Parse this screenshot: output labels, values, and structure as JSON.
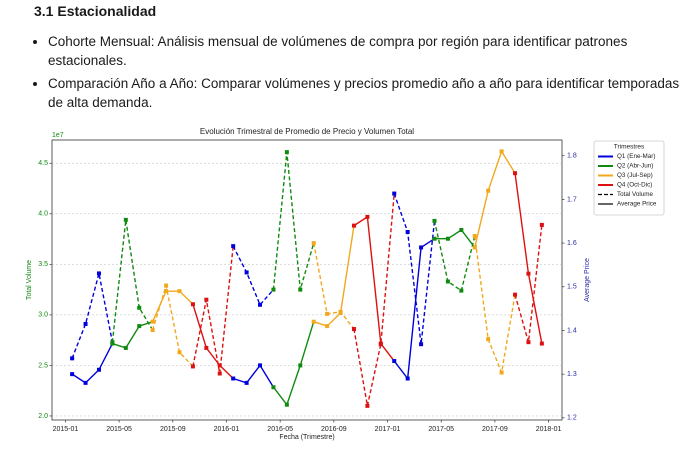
{
  "header": {
    "title": "3.1 Estacionalidad"
  },
  "bullets": [
    "Cohorte Mensual: Análisis mensual de volúmenes de compra por región para identificar patrones estacionales.",
    "Comparación Año a Año: Comparar volúmenes y precios promedio año a año para identificar temporadas de alta demanda."
  ],
  "chart_data": {
    "type": "line",
    "title": "Evolución Trimestral de Promedio de Precio y Volumen Total",
    "x_label": "Fecha (Trimestre)",
    "y_label": "Total Volume",
    "y2_label": "Average Price",
    "y_offset_label": "1e7",
    "x": [
      "2015-01",
      "2015-02",
      "2015-03",
      "2015-04",
      "2015-05",
      "2015-06",
      "2015-07",
      "2015-08",
      "2015-09",
      "2015-10",
      "2015-11",
      "2015-12",
      "2016-01",
      "2016-02",
      "2016-03",
      "2016-04",
      "2016-05",
      "2016-06",
      "2016-07",
      "2016-08",
      "2016-09",
      "2016-10",
      "2016-11",
      "2016-12",
      "2017-01",
      "2017-02",
      "2017-03",
      "2017-04",
      "2017-05",
      "2017-06",
      "2017-07",
      "2017-08",
      "2017-09",
      "2017-10",
      "2017-11",
      "2017-12"
    ],
    "series": [
      {
        "name": "Total Volume",
        "dash": true,
        "values": [
          2.57,
          2.91,
          3.41,
          2.73,
          3.94,
          3.07,
          2.85,
          3.29,
          2.63,
          2.49,
          3.15,
          2.42,
          3.68,
          3.42,
          3.1,
          3.25,
          4.61,
          3.25,
          3.71,
          3.01,
          3.03,
          2.86,
          2.1,
          2.71,
          4.2,
          3.82,
          2.71,
          3.93,
          3.33,
          3.24,
          3.78,
          2.76,
          2.43,
          3.2,
          2.73,
          3.89
        ]
      },
      {
        "name": "Average Price",
        "dash": false,
        "axis": "y2",
        "values": [
          1.3,
          1.28,
          1.31,
          1.37,
          1.36,
          1.41,
          1.42,
          1.49,
          1.49,
          1.46,
          1.36,
          1.32,
          1.29,
          1.28,
          1.32,
          1.27,
          1.23,
          1.32,
          1.42,
          1.41,
          1.44,
          1.64,
          1.66,
          1.37,
          1.33,
          1.29,
          1.59,
          1.61,
          1.61,
          1.63,
          1.59,
          1.72,
          1.81,
          1.76,
          1.53,
          1.37
        ]
      }
    ],
    "legend_title": "Trimestres",
    "quarters": [
      {
        "name": "Q1 (Ene-Mar)",
        "color": "#0000dd"
      },
      {
        "name": "Q2 (Abr-Jun)",
        "color": "#108a10"
      },
      {
        "name": "Q3 (Jul-Sep)",
        "color": "#f2a81d"
      },
      {
        "name": "Q4 (Oct-Dic)",
        "color": "#dd1111"
      }
    ],
    "xlim": [
      "2014-12",
      "2018-02"
    ],
    "xticks": [
      "2015-01",
      "2015-05",
      "2015-09",
      "2016-01",
      "2016-05",
      "2016-09",
      "2017-01",
      "2017-05",
      "2017-09",
      "2018-01"
    ],
    "ylim": [
      1.96,
      4.73
    ],
    "yticks": [
      {
        "value": 2,
        "label": "2.0"
      },
      2.5,
      {
        "value": 3,
        "label": "3.0"
      },
      3.5,
      {
        "value": 4,
        "label": "4.0"
      },
      4.5
    ],
    "y2lim": [
      1.195,
      1.836
    ],
    "y2ticks": [
      1.2,
      1.3,
      1.4,
      1.5,
      1.6,
      1.7,
      1.8
    ],
    "y_color": "#108a10",
    "y2_color": "#2a2aa8",
    "grid": true,
    "legend": "outside-right"
  }
}
